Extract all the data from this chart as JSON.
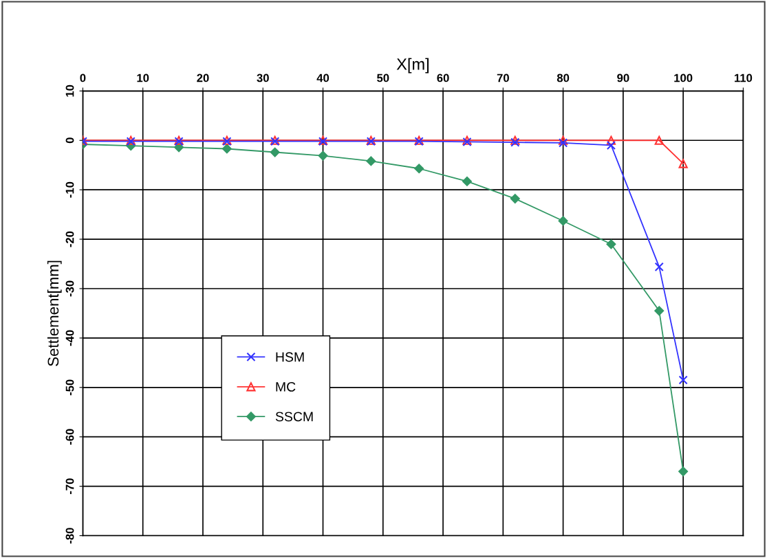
{
  "chart_data": {
    "type": "line",
    "xlabel": "X[m]",
    "ylabel": "Settlement[mm]",
    "x": [
      0,
      8,
      16,
      24,
      32,
      40,
      48,
      56,
      64,
      72,
      80,
      88,
      96,
      100
    ],
    "series": [
      {
        "name": "HSM",
        "color": "#3333ff",
        "marker": "cross",
        "values": [
          -0.2,
          -0.2,
          -0.2,
          -0.2,
          -0.2,
          -0.2,
          -0.2,
          -0.2,
          -0.3,
          -0.4,
          -0.5,
          -1,
          -25.6,
          -48.5
        ]
      },
      {
        "name": "MC",
        "color": "#ff3333",
        "marker": "triangle",
        "values": [
          0,
          0,
          0,
          0,
          0,
          0,
          0,
          0,
          0,
          0,
          0,
          0,
          0,
          -4.7
        ]
      },
      {
        "name": "SSCM",
        "color": "#339966",
        "marker": "diamond",
        "values": [
          -0.8,
          -1.1,
          -1.4,
          -1.7,
          -2.4,
          -3.1,
          -4.2,
          -5.7,
          -8.3,
          -11.8,
          -16.3,
          -21,
          -34.5,
          -67
        ]
      }
    ],
    "xlim": [
      0,
      110
    ],
    "xticks": [
      0,
      10,
      20,
      30,
      40,
      50,
      60,
      70,
      80,
      90,
      100,
      110
    ],
    "ylim": [
      -80,
      10
    ],
    "yticks": [
      -80,
      -70,
      -60,
      -50,
      -40,
      -30,
      -20,
      -10,
      0,
      10
    ],
    "grid": true,
    "legend": "lower left"
  }
}
